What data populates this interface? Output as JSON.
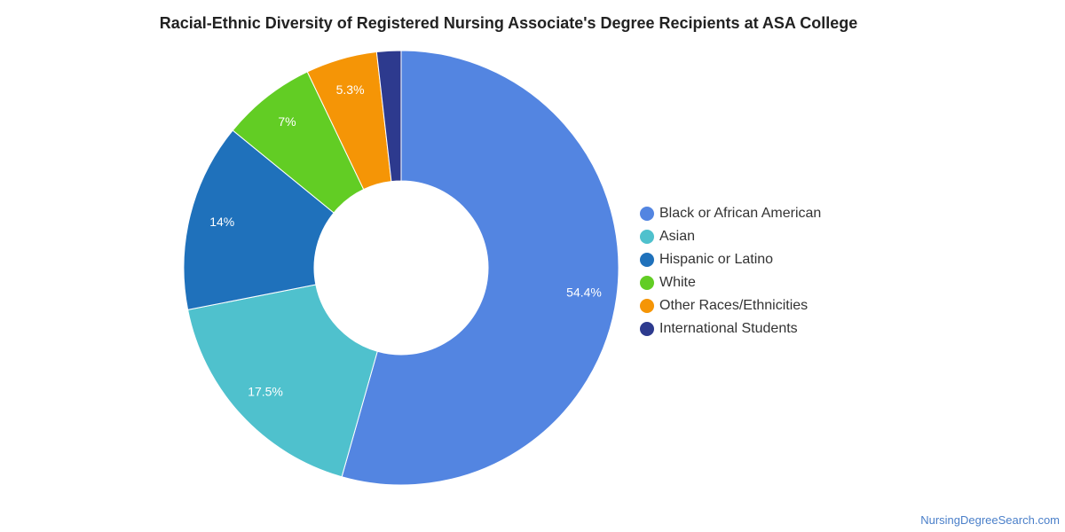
{
  "chart_data": {
    "type": "pie",
    "title": "Racial-Ethnic Diversity of Registered Nursing Associate's Degree Recipients at ASA College",
    "donut": true,
    "legend_position": "right",
    "slices": [
      {
        "label": "Black or African American",
        "value": 54.4,
        "display": "54.4%",
        "color": "#5385e1"
      },
      {
        "label": "Asian",
        "value": 17.5,
        "display": "17.5%",
        "color": "#4fc1cd"
      },
      {
        "label": "Hispanic or Latino",
        "value": 14.0,
        "display": "14%",
        "color": "#1f71bb"
      },
      {
        "label": "White",
        "value": 7.0,
        "display": "7%",
        "color": "#62cd24"
      },
      {
        "label": "Other Races/Ethnicities",
        "value": 5.3,
        "display": "5.3%",
        "color": "#f59506"
      },
      {
        "label": "International Students",
        "value": 1.8,
        "display": "",
        "color": "#2d3a8e"
      }
    ]
  },
  "footer": {
    "credit": "NursingDegreeSearch.com"
  }
}
